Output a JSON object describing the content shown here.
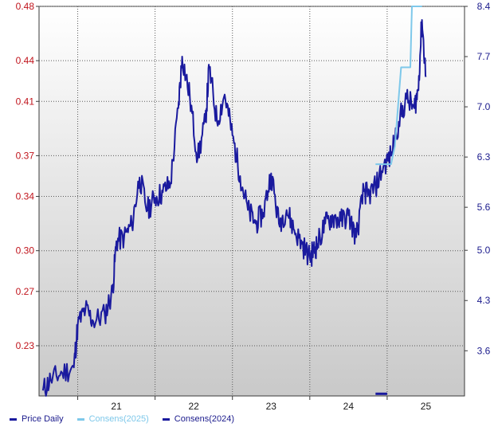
{
  "chart_data": {
    "type": "line",
    "x_ticks": [
      "21",
      "22",
      "23",
      "24",
      "25"
    ],
    "x_range": [
      20.0,
      25.5
    ],
    "y_left": {
      "ticks": [
        "0.48",
        "0.44",
        "0.41",
        "0.37",
        "0.34",
        "0.30",
        "0.27",
        "0.23"
      ],
      "ylim": [
        0.193,
        0.48
      ],
      "color": "#c0141c"
    },
    "y_right": {
      "ticks": [
        "8.4",
        "7.7",
        "7.0",
        "6.3",
        "5.6",
        "5.0",
        "4.3",
        "3.6"
      ],
      "ylim": [
        2.97,
        8.4
      ],
      "color": "#1a1a8c"
    },
    "grid": true,
    "legend_placement": "bottom-left",
    "series": [
      {
        "name": "Price Daily",
        "color": "#1a1a9e",
        "axis": "left",
        "x": [
          20.05,
          20.15,
          20.3,
          20.45,
          20.5,
          20.6,
          20.7,
          20.85,
          20.95,
          21.0,
          21.1,
          21.2,
          21.3,
          21.4,
          21.5,
          21.6,
          21.7,
          21.8,
          21.85,
          21.95,
          22.05,
          22.15,
          22.2,
          22.3,
          22.4,
          22.5,
          22.6,
          22.7,
          22.8,
          22.9,
          23.0,
          23.1,
          23.2,
          23.3,
          23.4,
          23.5,
          23.55,
          23.6,
          23.7,
          23.8,
          23.9,
          24.0,
          24.1,
          24.2,
          24.25,
          24.35,
          24.45,
          24.55,
          24.65,
          24.75,
          24.85,
          24.9,
          24.95,
          25.0
        ],
        "y": [
          0.197,
          0.205,
          0.21,
          0.214,
          0.245,
          0.257,
          0.248,
          0.253,
          0.27,
          0.307,
          0.31,
          0.319,
          0.354,
          0.33,
          0.339,
          0.343,
          0.35,
          0.405,
          0.443,
          0.413,
          0.368,
          0.395,
          0.435,
          0.395,
          0.415,
          0.385,
          0.355,
          0.33,
          0.32,
          0.328,
          0.357,
          0.32,
          0.33,
          0.315,
          0.305,
          0.295,
          0.3,
          0.305,
          0.32,
          0.325,
          0.322,
          0.326,
          0.31,
          0.345,
          0.34,
          0.347,
          0.362,
          0.37,
          0.395,
          0.412,
          0.405,
          0.418,
          0.47,
          0.428
        ]
      },
      {
        "name": "Consens(2025)",
        "color": "#7ec8ea",
        "axis": "right",
        "x": [
          24.35,
          24.55,
          24.6,
          24.68,
          24.7,
          24.8,
          24.82,
          24.9,
          24.95
        ],
        "y": [
          6.2,
          6.2,
          6.45,
          7.55,
          7.55,
          7.55,
          8.4,
          8.4,
          8.4
        ]
      },
      {
        "name": "Consens(2024)",
        "color": "#1a1a9e",
        "axis": "right",
        "x": [
          24.35,
          24.5
        ],
        "y": [
          3.0,
          3.0
        ]
      }
    ]
  }
}
